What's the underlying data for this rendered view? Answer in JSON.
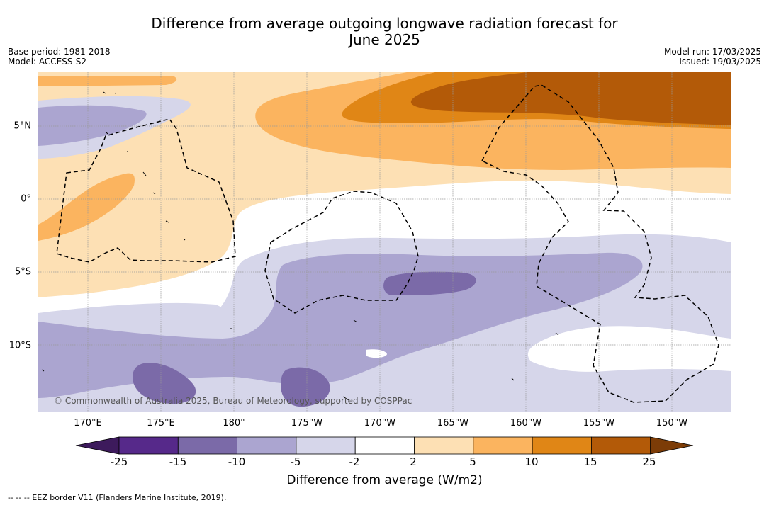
{
  "title": {
    "line1": "Difference from average outgoing longwave radiation forecast for",
    "line2": "June 2025"
  },
  "meta": {
    "base_period": "Base period: 1981-2018",
    "model": "Model: ACCESS-S2",
    "model_run": "Model run: 17/03/2025",
    "issued": "Issued: 19/03/2025"
  },
  "map": {
    "lon_ticks": [
      "170°E",
      "175°E",
      "180°",
      "175°W",
      "170°W",
      "165°W",
      "160°W",
      "155°W",
      "150°W"
    ],
    "lat_ticks": [
      "5°N",
      "0°",
      "5°S",
      "10°S"
    ],
    "copyright": "© Commonwealth of Australia 2025, Bureau of Meteorology, supported by COSPPac"
  },
  "colorbar": {
    "labels": [
      "-25",
      "-15",
      "-10",
      "-5",
      "-2",
      "2",
      "5",
      "10",
      "15",
      "25"
    ],
    "colors": [
      "#3d1a5c",
      "#56298a",
      "#7b6aa8",
      "#aba5d0",
      "#d6d6ea",
      "#ffffff",
      "#fde0b4",
      "#fbb45f",
      "#e08616",
      "#b35a08",
      "#7c3c07"
    ],
    "title": "Difference from average (W/m2)"
  },
  "eez_note": "-- -- -- EEZ border V11 (Flanders Marine Institute, 2019)."
}
